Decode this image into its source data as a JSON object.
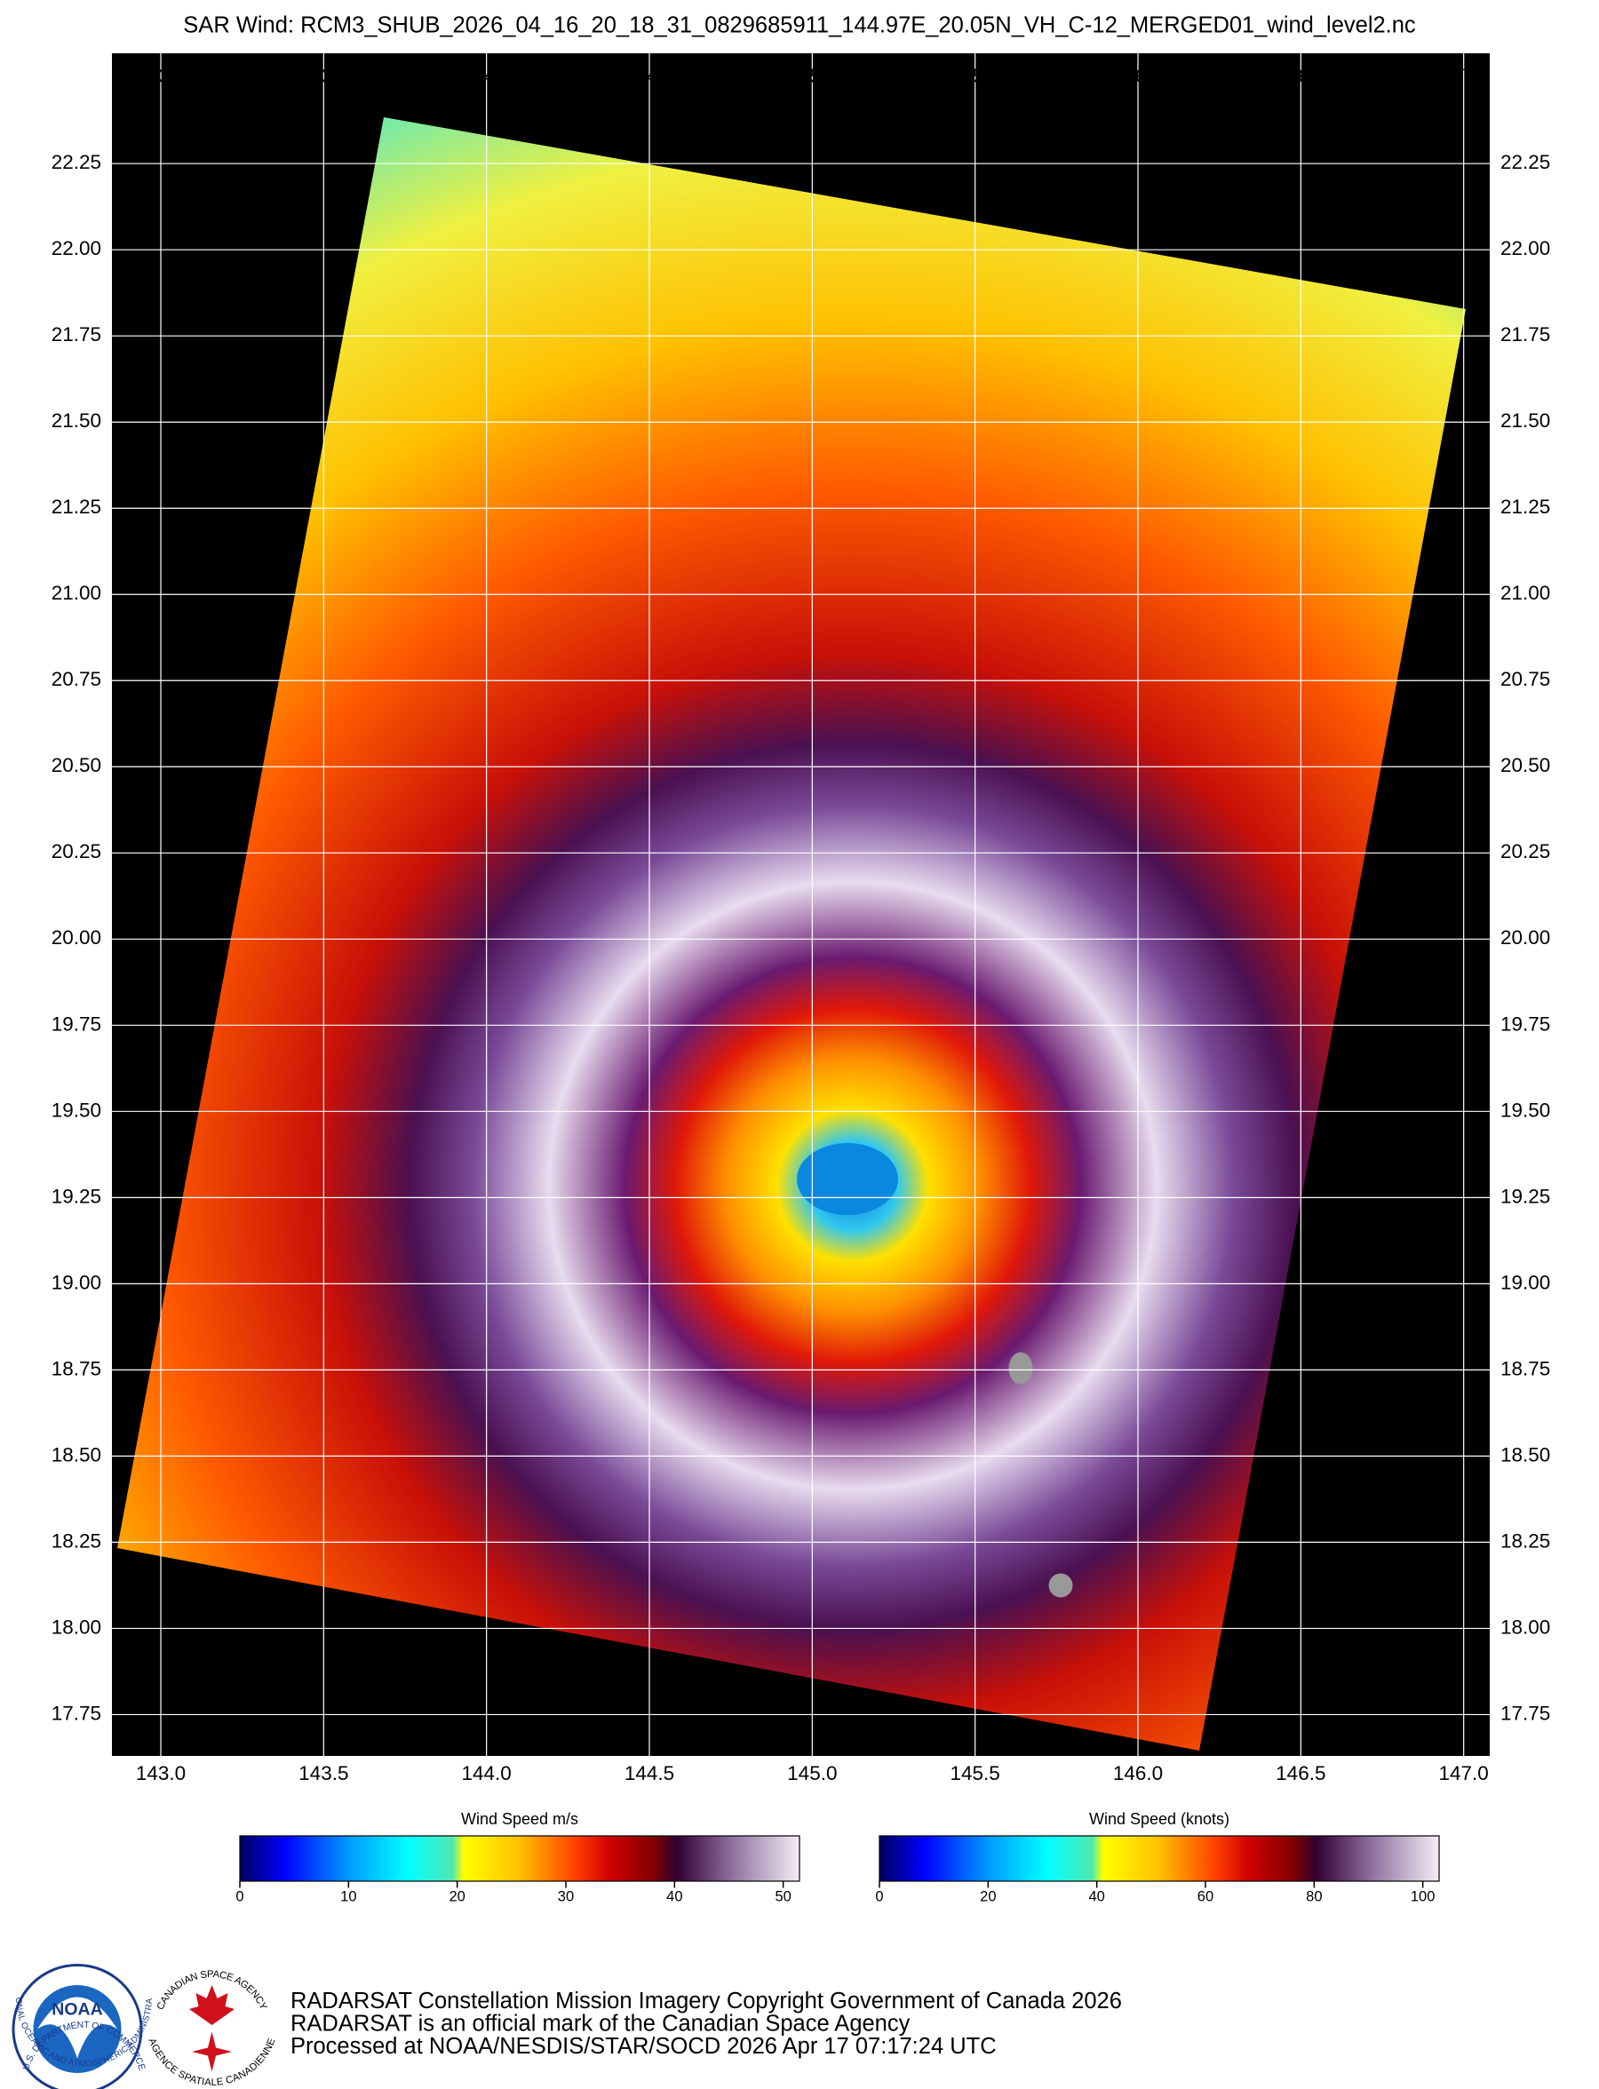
{
  "map": {
    "title": "SAR Wind: RCM3_SHUB_2026_04_16_20_18_31_0829685911_144.97E_20.05N_VH_C-12_MERGED01_wind_level2.nc",
    "lonlim": [
      142.85,
      147.08
    ],
    "latlim": [
      17.63,
      22.57
    ],
    "lon_ticks": [
      {
        "value": 143,
        "label": "143.0"
      },
      {
        "value": 143.5,
        "label": "143.5"
      },
      {
        "value": 144,
        "label": "144.0"
      },
      {
        "value": 144.5,
        "label": "144.5"
      },
      {
        "value": 145,
        "label": "145.0"
      },
      {
        "value": 145.5,
        "label": "145.5"
      },
      {
        "value": 146,
        "label": "146.0"
      },
      {
        "value": 146.5,
        "label": "146.5"
      },
      {
        "value": 147,
        "label": "147.0"
      }
    ],
    "lat_ticks": [
      {
        "value": 17.75,
        "label": "17.75"
      },
      {
        "value": 18,
        "label": "18.00"
      },
      {
        "value": 18.25,
        "label": "18.25"
      },
      {
        "value": 18.5,
        "label": "18.50"
      },
      {
        "value": 18.75,
        "label": "18.75"
      },
      {
        "value": 19,
        "label": "19.00"
      },
      {
        "value": 19.25,
        "label": "19.25"
      },
      {
        "value": 19.5,
        "label": "19.50"
      },
      {
        "value": 19.75,
        "label": "19.75"
      },
      {
        "value": 20,
        "label": "20.00"
      },
      {
        "value": 20.25,
        "label": "20.25"
      },
      {
        "value": 20.5,
        "label": "20.50"
      },
      {
        "value": 20.75,
        "label": "20.75"
      },
      {
        "value": 21,
        "label": "21.00"
      },
      {
        "value": 21.25,
        "label": "21.25"
      },
      {
        "value": 21.5,
        "label": "21.50"
      },
      {
        "value": 21.75,
        "label": "21.75"
      },
      {
        "value": 22,
        "label": "22.00"
      },
      {
        "value": 22.25,
        "label": "22.25"
      }
    ],
    "grid": true
  },
  "colorbars": [
    {
      "label": "Wind Speed m/s",
      "lim": [
        0,
        51.5
      ],
      "ticks": [
        0,
        10,
        20,
        30,
        40,
        50
      ]
    },
    {
      "label": "Wind Speed (knots)",
      "lim": [
        0,
        103
      ],
      "ticks": [
        0,
        20,
        40,
        60,
        80,
        100
      ]
    }
  ],
  "logos": {
    "noaa": "NOAA",
    "noaa_ring_top": "NATIONAL OCEANIC AND ATMOSPHERIC ADMINISTRATION",
    "noaa_ring_bottom": "U.S. DEPARTMENT OF COMMERCE",
    "csa_ring_top": "CANADIAN SPACE AGENCY",
    "csa_ring_bottom": "AGENCE SPATIALE CANADIENNE"
  },
  "footer": [
    "RADARSAT Constellation Mission Imagery Copyright Government of Canada 2026",
    "RADARSAT is an official mark of the Canadian Space Agency",
    "Processed at NOAA/NESDIS/STAR/SOCD 2026 Apr 17 07:17:24 UTC"
  ]
}
